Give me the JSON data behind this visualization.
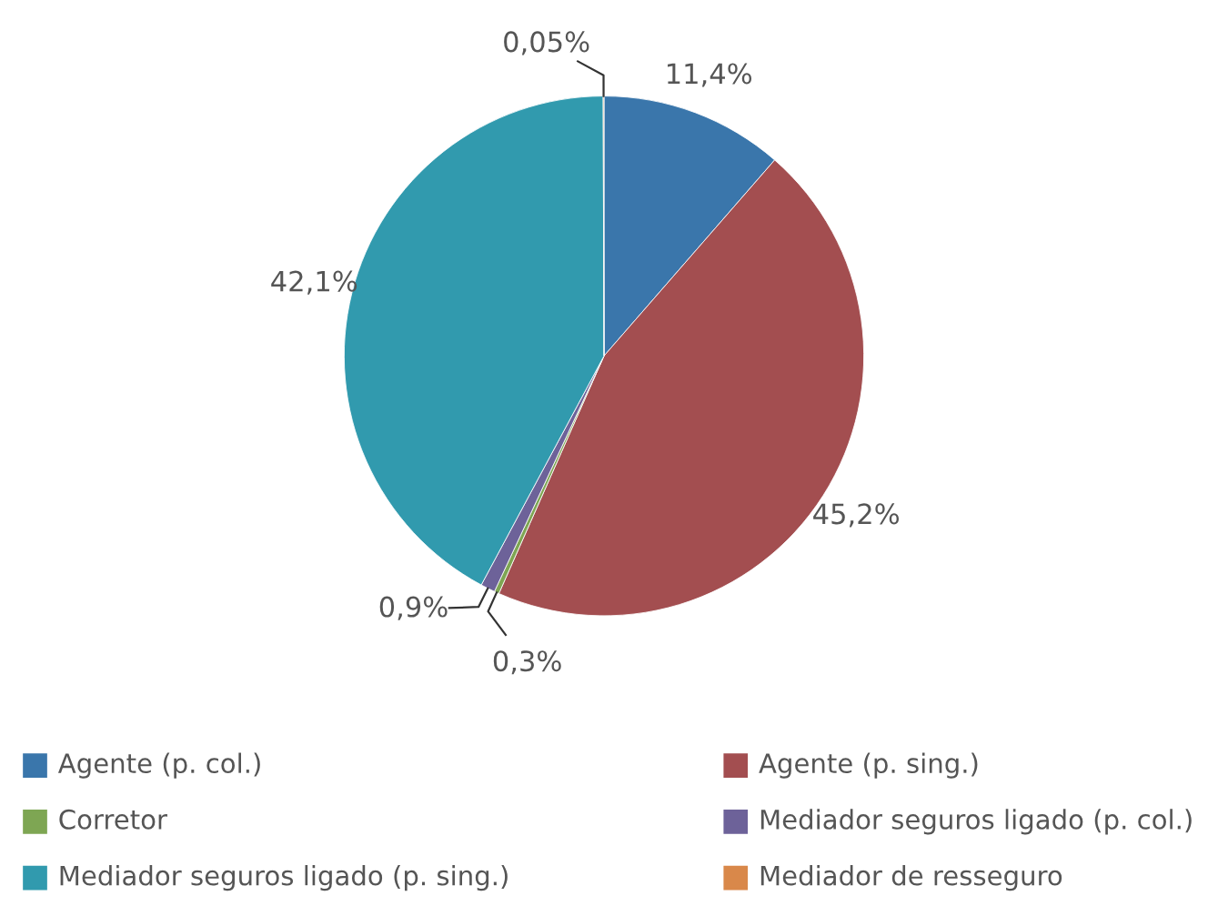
{
  "chart_data": {
    "type": "pie",
    "categories": [
      "Agente (p. col.)",
      "Agente (p. sing.)",
      "Corretor",
      "Mediador seguros ligado (p. col.)",
      "Mediador seguros ligado (p. sing.)",
      "Mediador de resseguro"
    ],
    "values": [
      11.4,
      45.2,
      0.3,
      0.9,
      42.1,
      0.05
    ],
    "value_labels": [
      "11,4%",
      "45,2%",
      "0,3%",
      "0,9%",
      "42,1%",
      "0,05%"
    ],
    "colors": [
      "#3a76ab",
      "#a34e50",
      "#7ea653",
      "#6d6299",
      "#319aae",
      "#d9884a"
    ],
    "legend": "bottom"
  }
}
